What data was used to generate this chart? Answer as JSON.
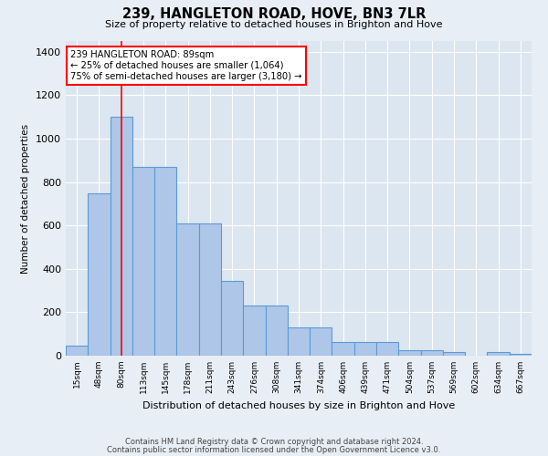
{
  "title": "239, HANGLETON ROAD, HOVE, BN3 7LR",
  "subtitle": "Size of property relative to detached houses in Brighton and Hove",
  "xlabel": "Distribution of detached houses by size in Brighton and Hove",
  "ylabel": "Number of detached properties",
  "footnote1": "Contains HM Land Registry data © Crown copyright and database right 2024.",
  "footnote2": "Contains public sector information licensed under the Open Government Licence v3.0.",
  "categories": [
    "15sqm",
    "48sqm",
    "80sqm",
    "113sqm",
    "145sqm",
    "178sqm",
    "211sqm",
    "243sqm",
    "276sqm",
    "308sqm",
    "341sqm",
    "374sqm",
    "406sqm",
    "439sqm",
    "471sqm",
    "504sqm",
    "537sqm",
    "569sqm",
    "602sqm",
    "634sqm",
    "667sqm"
  ],
  "bar_heights": [
    47,
    750,
    1100,
    870,
    870,
    610,
    610,
    345,
    230,
    230,
    130,
    130,
    65,
    65,
    65,
    25,
    25,
    15,
    0,
    15,
    10
  ],
  "bar_color": "#aec6e8",
  "bar_edge_color": "#5b9bd5",
  "annotation_box_text1": "239 HANGLETON ROAD: 89sqm",
  "annotation_box_text2": "← 25% of detached houses are smaller (1,064)",
  "annotation_box_text3": "75% of semi-detached houses are larger (3,180) →",
  "red_line_x": 2.5,
  "background_color": "#e8eef5",
  "plot_bg_color": "#dce6f0",
  "ylim": [
    0,
    1450
  ],
  "yticks": [
    0,
    200,
    400,
    600,
    800,
    1000,
    1200,
    1400
  ]
}
